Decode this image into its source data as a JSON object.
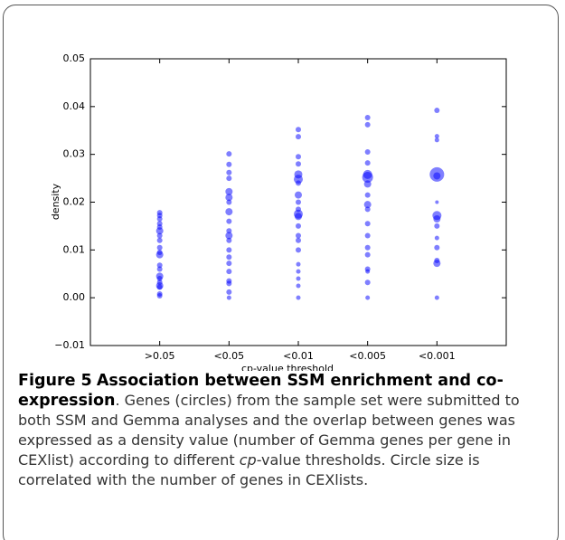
{
  "chart_data": {
    "type": "scatter",
    "xlabel": "cp-value threshold",
    "ylabel": "density",
    "categories": [
      ">0.05",
      "<0.05",
      "<0.01",
      "<0.005",
      "<0.001"
    ],
    "ylim": [
      -0.01,
      0.05
    ],
    "yticks": [
      {
        "value": -0.01,
        "label": "−0.01"
      },
      {
        "value": 0,
        "label": "0.00"
      },
      0.01,
      0.02,
      0.03,
      0.04,
      0.05
    ],
    "color": "#0000ff",
    "groups": [
      {
        "values": [
          0.0178,
          0.0172,
          0.0165,
          0.0155,
          0.0148,
          0.014,
          0.013,
          0.012,
          0.0105,
          0.0095,
          0.009,
          0.0068,
          0.006,
          0.0045,
          0.004,
          0.0032,
          0.0025,
          0.0022,
          0.0008,
          0.0004
        ],
        "sizes": [
          3,
          3,
          3,
          3,
          3,
          4,
          3,
          3,
          3,
          3,
          4,
          3,
          3,
          4,
          3,
          3,
          4,
          3,
          3,
          3
        ]
      },
      {
        "values": [
          0.0301,
          0.0279,
          0.0262,
          0.025,
          0.0222,
          0.021,
          0.02,
          0.018,
          0.016,
          0.014,
          0.013,
          0.012,
          0.01,
          0.0085,
          0.0072,
          0.0055,
          0.0035,
          0.003,
          0.0012,
          0
        ],
        "sizes": [
          3,
          3,
          3,
          3,
          4,
          4,
          3,
          4,
          3,
          3,
          4,
          3,
          3,
          3,
          3,
          3,
          3,
          3,
          3,
          2.5
        ]
      },
      {
        "values": [
          0.0352,
          0.0337,
          0.0295,
          0.028,
          0.0258,
          0.0248,
          0.024,
          0.0215,
          0.02,
          0.0185,
          0.0175,
          0.017,
          0.015,
          0.013,
          0.012,
          0.01,
          0.007,
          0.0055,
          0.004,
          0.0025,
          0
        ],
        "sizes": [
          3,
          3,
          3,
          3,
          4.5,
          5,
          3,
          4,
          3,
          3,
          5,
          4,
          3,
          3,
          3,
          3,
          2.5,
          2.5,
          2.5,
          2.5,
          2.5
        ]
      },
      {
        "values": [
          0.0377,
          0.0362,
          0.0305,
          0.0282,
          0.0258,
          0.0252,
          0.0238,
          0.0215,
          0.0195,
          0.0185,
          0.0155,
          0.013,
          0.0105,
          0.009,
          0.006,
          0.0055,
          0.0032,
          0
        ],
        "sizes": [
          3,
          3,
          3,
          3,
          5,
          6,
          4,
          3,
          4,
          3,
          3,
          3,
          3,
          3,
          3,
          2.5,
          3,
          2.5
        ]
      },
      {
        "values": [
          0.0392,
          0.0338,
          0.033,
          0.0258,
          0.0255,
          0.02,
          0.0172,
          0.0165,
          0.015,
          0.0125,
          0.0105,
          0.0078,
          0.0072,
          0
        ],
        "sizes": [
          3,
          2.5,
          2.5,
          8,
          4,
          2,
          5,
          4,
          3,
          2.5,
          3,
          3,
          4,
          2.5
        ]
      }
    ]
  },
  "caption": {
    "label": "Figure 5",
    "title": "Association between SSM enrichment and co-expression",
    "text_before": ". Genes (circles) from the sample set were submitted to both SSM and Gemma analyses and the overlap between genes was expressed as a density value (number of Gemma genes per gene in CEXlist) according to different ",
    "italic": "cp",
    "text_after": "-value thresholds. Circle size is correlated with the number of genes in CEXlists."
  }
}
